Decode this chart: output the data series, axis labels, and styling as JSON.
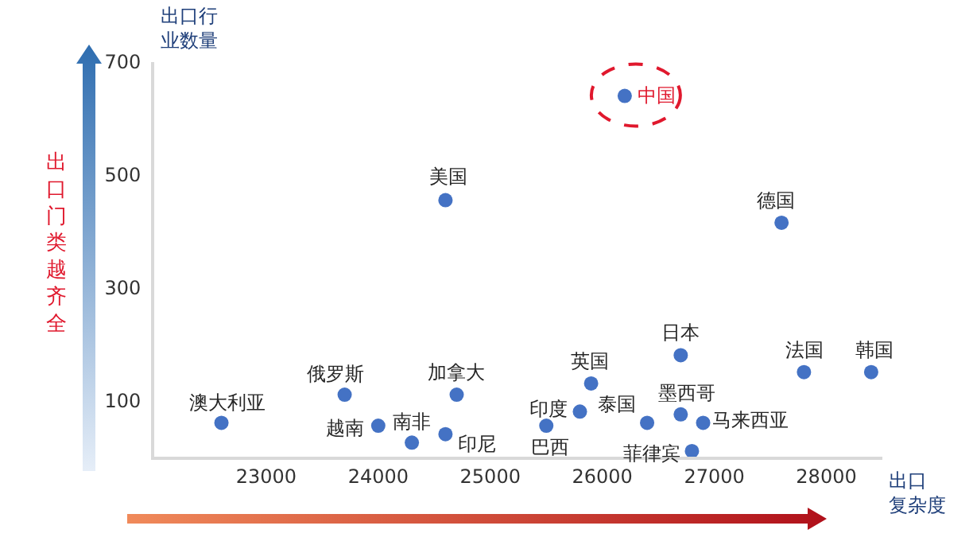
{
  "chart_data": {
    "type": "scatter",
    "xlabel": "出口复杂度",
    "ylabel": "出口行业数量",
    "color": "#4472c4",
    "marker": "circle",
    "x": [
      22600,
      23700,
      24000,
      24300,
      24600,
      24600,
      24700,
      26200,
      27600,
      26700,
      25900,
      27800,
      28400,
      25800,
      26400,
      26700,
      26900,
      25500,
      26800
    ],
    "values": [
      60,
      110,
      55,
      25,
      40,
      455,
      110,
      640,
      415,
      180,
      130,
      150,
      150,
      80,
      60,
      75,
      60,
      55,
      10
    ],
    "xlim": [
      22000,
      28500
    ],
    "ylim": [
      0,
      700
    ],
    "xticks": [
      23000,
      24000,
      25000,
      26000,
      27000,
      28000
    ],
    "yticks": [
      100,
      300,
      500,
      700
    ],
    "annotations": [
      "出口门类越齐全",
      {
        "text": "澳大利亚",
        "x": 22600,
        "y": 60
      },
      {
        "text": "俄罗斯",
        "x": 23700,
        "y": 110
      },
      {
        "text": "越南",
        "x": 24000,
        "y": 55
      },
      {
        "text": "南非",
        "x": 24300,
        "y": 25
      },
      {
        "text": "印尼",
        "x": 24600,
        "y": 40
      },
      {
        "text": "美国",
        "x": 24600,
        "y": 455
      },
      {
        "text": "加拿大",
        "x": 24700,
        "y": 110
      },
      {
        "text": "中国",
        "x": 26200,
        "y": 640
      },
      {
        "text": "德国",
        "x": 27600,
        "y": 415
      },
      {
        "text": "日本",
        "x": 26700,
        "y": 180
      },
      {
        "text": "英国",
        "x": 25900,
        "y": 130
      },
      {
        "text": "法国",
        "x": 27800,
        "y": 150
      },
      {
        "text": "韩国",
        "x": 28400,
        "y": 150
      },
      {
        "text": "印度",
        "x": 25800,
        "y": 80
      },
      {
        "text": "泰国",
        "x": 26400,
        "y": 60
      },
      {
        "text": "墨西哥",
        "x": 26700,
        "y": 75
      },
      {
        "text": "马来西亚",
        "x": 26900,
        "y": 60
      },
      {
        "text": "巴西",
        "x": 25500,
        "y": 55
      },
      {
        "text": "菲律宾",
        "x": 26800,
        "y": 10
      }
    ]
  }
}
